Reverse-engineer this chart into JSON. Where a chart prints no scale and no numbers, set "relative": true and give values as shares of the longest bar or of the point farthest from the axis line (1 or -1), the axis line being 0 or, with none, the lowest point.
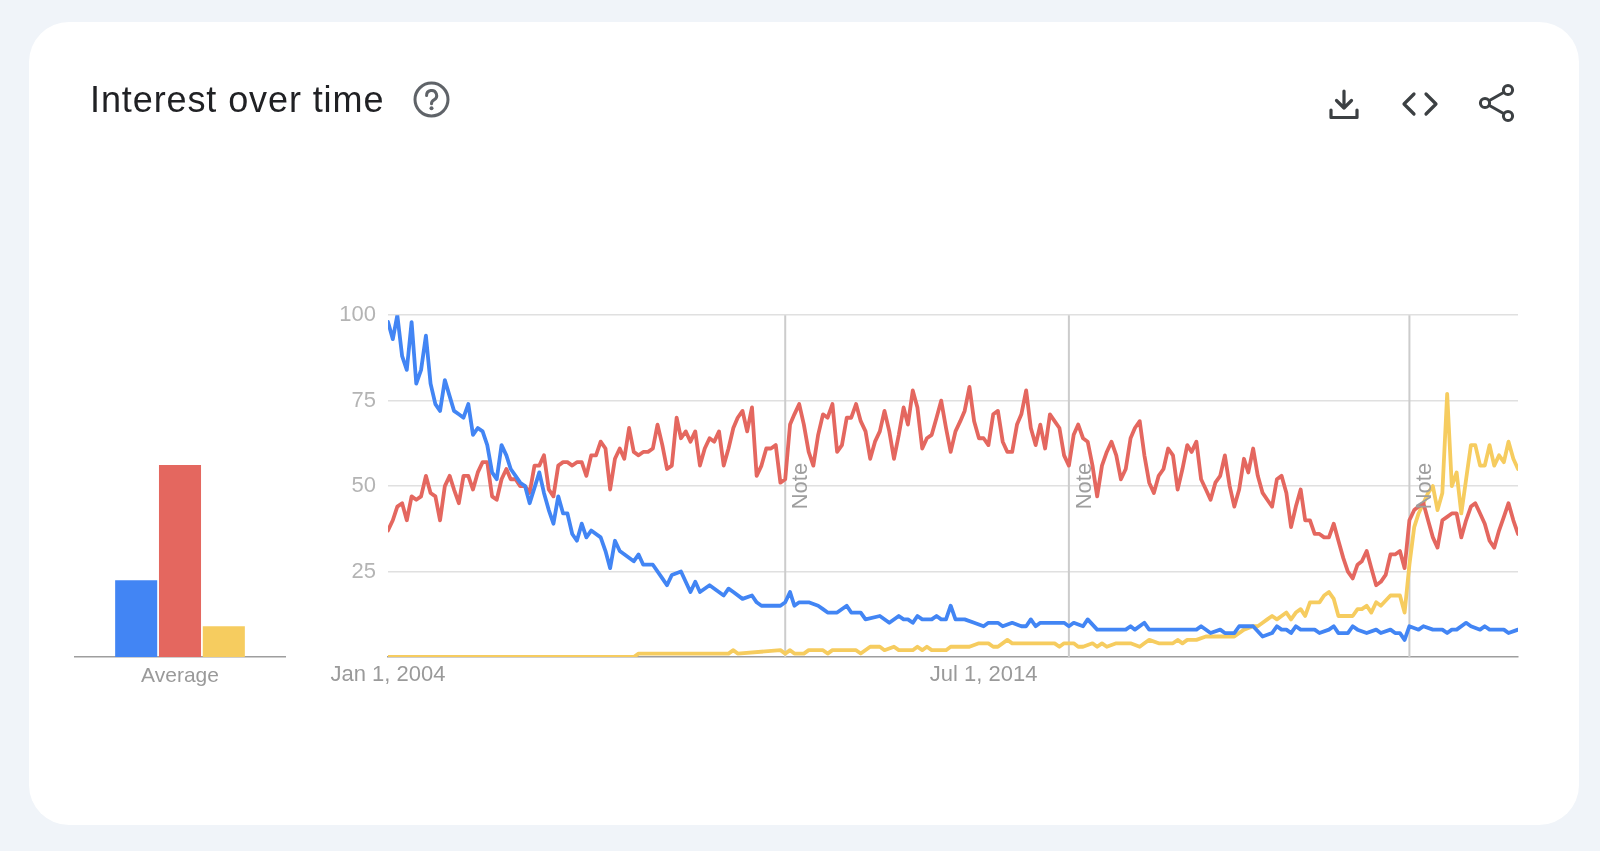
{
  "chart_data": [
    {
      "type": "bar",
      "title": "Interest over time",
      "categories": [
        "Average"
      ],
      "relative": true,
      "series": [
        {
          "color": "#4285f4",
          "values": [
            0.4
          ]
        },
        {
          "color": "#e4675f",
          "values": [
            1
          ]
        },
        {
          "color": "#f6cc5f",
          "values": [
            0.16
          ]
        }
      ]
    },
    {
      "type": "line",
      "x": [
        "2004-01",
        "2004-02",
        "2004-03",
        "2004-04",
        "2004-05",
        "2004-06",
        "2004-07",
        "2004-08",
        "2004-09",
        "2004-10",
        "2004-11",
        "2004-12",
        "2005-01",
        "2005-02",
        "2005-03",
        "2005-04",
        "2005-05",
        "2005-06",
        "2005-07",
        "2005-08",
        "2005-09",
        "2005-10",
        "2005-11",
        "2005-12",
        "2006-01",
        "2006-02",
        "2006-03",
        "2006-04",
        "2006-05",
        "2006-06",
        "2006-07",
        "2006-08",
        "2006-09",
        "2006-10",
        "2006-11",
        "2006-12",
        "2007-01",
        "2007-02",
        "2007-03",
        "2007-04",
        "2007-05",
        "2007-06",
        "2007-07",
        "2007-08",
        "2007-09",
        "2007-10",
        "2007-11",
        "2007-12",
        "2008-01",
        "2008-02",
        "2008-03",
        "2008-04",
        "2008-05",
        "2008-06",
        "2008-07",
        "2008-08",
        "2008-09",
        "2008-10",
        "2008-11",
        "2008-12",
        "2009-01",
        "2009-02",
        "2009-03",
        "2009-04",
        "2009-05",
        "2009-06",
        "2009-07",
        "2009-08",
        "2009-09",
        "2009-10",
        "2009-11",
        "2009-12",
        "2010-01",
        "2010-02",
        "2010-03",
        "2010-04",
        "2010-05",
        "2010-06",
        "2010-07",
        "2010-08",
        "2010-09",
        "2010-10",
        "2010-11",
        "2010-12",
        "2011-01",
        "2011-02",
        "2011-03",
        "2011-04",
        "2011-05",
        "2011-06",
        "2011-07",
        "2011-08",
        "2011-09",
        "2011-10",
        "2011-11",
        "2011-12",
        "2012-01",
        "2012-02",
        "2012-03",
        "2012-04",
        "2012-05",
        "2012-06",
        "2012-07",
        "2012-08",
        "2012-09",
        "2012-10",
        "2012-11",
        "2012-12",
        "2013-01",
        "2013-02",
        "2013-03",
        "2013-04",
        "2013-05",
        "2013-06",
        "2013-07",
        "2013-08",
        "2013-09",
        "2013-10",
        "2013-11",
        "2013-12",
        "2014-01",
        "2014-02",
        "2014-03",
        "2014-04",
        "2014-05",
        "2014-06",
        "2014-07",
        "2014-08",
        "2014-09",
        "2014-10",
        "2014-11",
        "2014-12",
        "2015-01",
        "2015-02",
        "2015-03",
        "2015-04",
        "2015-05",
        "2015-06",
        "2015-07",
        "2015-08",
        "2015-09",
        "2015-10",
        "2015-11",
        "2015-12",
        "2016-01",
        "2016-02",
        "2016-03",
        "2016-04",
        "2016-05",
        "2016-06",
        "2016-07",
        "2016-08",
        "2016-09",
        "2016-10",
        "2016-11",
        "2016-12",
        "2017-01",
        "2017-02",
        "2017-03",
        "2017-04",
        "2017-05",
        "2017-06",
        "2017-07",
        "2017-08",
        "2017-09",
        "2017-10",
        "2017-11",
        "2017-12",
        "2018-01",
        "2018-02",
        "2018-03",
        "2018-04",
        "2018-05",
        "2018-06",
        "2018-07",
        "2018-08",
        "2018-09",
        "2018-10",
        "2018-11",
        "2018-12",
        "2019-01",
        "2019-02",
        "2019-03",
        "2019-04",
        "2019-05",
        "2019-06",
        "2019-07",
        "2019-08",
        "2019-09",
        "2019-10",
        "2019-11",
        "2019-12",
        "2020-01",
        "2020-02",
        "2020-03",
        "2020-04",
        "2020-05",
        "2020-06",
        "2020-07",
        "2020-08",
        "2020-09",
        "2020-10",
        "2020-11",
        "2020-12",
        "2021-01",
        "2021-02",
        "2021-03",
        "2021-04",
        "2021-05",
        "2021-06",
        "2021-07",
        "2021-08",
        "2021-09",
        "2021-10",
        "2021-11",
        "2021-12",
        "2022-01",
        "2022-02",
        "2022-03",
        "2022-04",
        "2022-05",
        "2022-06",
        "2022-07",
        "2022-08",
        "2022-09",
        "2022-10",
        "2022-11",
        "2022-12",
        "2023-01",
        "2023-02",
        "2023-03",
        "2023-04",
        "2023-05",
        "2023-06",
        "2023-07",
        "2023-08",
        "2023-09",
        "2023-10",
        "2023-11",
        "2023-12"
      ],
      "series": [
        {
          "color": "#4285f4",
          "x": [
            "2004-01",
            "2004-02",
            "2004-03",
            "2004-04",
            "2004-05",
            "2004-06",
            "2004-07",
            "2004-08",
            "2004-09",
            "2004-10",
            "2004-11",
            "2004-12",
            "2005-01",
            "2005-03",
            "2005-04",
            "2005-05",
            "2005-06",
            "2005-07",
            "2005-08",
            "2005-09",
            "2005-10",
            "2005-11",
            "2005-12",
            "2006-01",
            "2006-02",
            "2006-03",
            "2006-04",
            "2006-05",
            "2006-06",
            "2006-07",
            "2006-09",
            "2006-10",
            "2006-11",
            "2006-12",
            "2007-01",
            "2007-02",
            "2007-03",
            "2007-04",
            "2007-05",
            "2007-06",
            "2007-07",
            "2007-08",
            "2007-10",
            "2007-11",
            "2007-12",
            "2008-01",
            "2008-02",
            "2008-05",
            "2008-06",
            "2008-07",
            "2008-09",
            "2008-11",
            "2008-12",
            "2009-01",
            "2009-03",
            "2009-05",
            "2009-06",
            "2009-07",
            "2009-09",
            "2009-12",
            "2010-01",
            "2010-02",
            "2010-04",
            "2010-06",
            "2010-07",
            "2010-08",
            "2010-12",
            "2011-01",
            "2011-02",
            "2011-03",
            "2011-04",
            "2011-06",
            "2011-08",
            "2011-09",
            "2011-10",
            "2011-12",
            "2012-02",
            "2012-03",
            "2012-05",
            "2012-06",
            "2012-09",
            "2012-11",
            "2013-01",
            "2013-02",
            "2013-03",
            "2013-04",
            "2013-05",
            "2013-06",
            "2013-08",
            "2013-09",
            "2013-10",
            "2013-11",
            "2013-12",
            "2014-01",
            "2014-03",
            "2014-05",
            "2014-07",
            "2014-08",
            "2014-10",
            "2014-11",
            "2015-01",
            "2015-03",
            "2015-04",
            "2015-05",
            "2015-06",
            "2015-07",
            "2015-12",
            "2016-01",
            "2016-02",
            "2016-04",
            "2016-05",
            "2016-07",
            "2016-09",
            "2017-01",
            "2017-02",
            "2017-03",
            "2017-05",
            "2017-06",
            "2018-04",
            "2018-05",
            "2018-07",
            "2018-09",
            "2018-10",
            "2018-12",
            "2019-01",
            "2019-04",
            "2019-06",
            "2019-08",
            "2019-09",
            "2019-10",
            "2019-11",
            "2019-12",
            "2020-01",
            "2020-02",
            "2020-05",
            "2020-06",
            "2020-08",
            "2020-09",
            "2020-10",
            "2020-12",
            "2021-01",
            "2021-02",
            "2021-04",
            "2021-06",
            "2021-07",
            "2021-09",
            "2021-10",
            "2021-11",
            "2021-12",
            "2022-01",
            "2022-03",
            "2022-04",
            "2022-06",
            "2022-08",
            "2022-09",
            "2022-10",
            "2022-11",
            "2023-01",
            "2023-02",
            "2023-04",
            "2023-05",
            "2023-06",
            "2023-09",
            "2023-10",
            "2023-12"
          ],
          "values": [
            98,
            93,
            100,
            88,
            84,
            98,
            80,
            84,
            94,
            80,
            74,
            72,
            81,
            72,
            71,
            70,
            74,
            65,
            67,
            66,
            62,
            54,
            52,
            62,
            59,
            55,
            53,
            51,
            50,
            45,
            54,
            48,
            43,
            39,
            47,
            42,
            42,
            36,
            34,
            39,
            35,
            37,
            35,
            31,
            26,
            34,
            31,
            28,
            30,
            27,
            27,
            23,
            21,
            24,
            25,
            19,
            22,
            19,
            21,
            18,
            20,
            19,
            17,
            18,
            16,
            15,
            15,
            16,
            19,
            15,
            16,
            16,
            15,
            14,
            13,
            13,
            15,
            13,
            13,
            11,
            12,
            10,
            12,
            11,
            11,
            10,
            12,
            11,
            11,
            12,
            11,
            11,
            15,
            11,
            11,
            10,
            9,
            10,
            10,
            9,
            10,
            9,
            9,
            11,
            9,
            10,
            10,
            9,
            10,
            9,
            11,
            8,
            8,
            8,
            9,
            8,
            10,
            8,
            8,
            9,
            7,
            8,
            7,
            7,
            9,
            9,
            6,
            7,
            9,
            8,
            8,
            7,
            9,
            8,
            8,
            7,
            8,
            9,
            7,
            7,
            9,
            8,
            7,
            8,
            7,
            8,
            7,
            7,
            5,
            9,
            8,
            9,
            8,
            8,
            7,
            8,
            8,
            10,
            9,
            8,
            9,
            8,
            8,
            7,
            8
          ]
        },
        {
          "color": "#e4675f",
          "values": [
            37,
            40,
            44,
            45,
            40,
            47,
            46,
            47,
            53,
            48,
            47,
            40,
            50,
            53,
            49,
            45,
            53,
            53,
            49,
            54,
            57,
            57,
            47,
            46,
            52,
            55,
            52,
            52,
            50,
            50,
            48,
            56,
            56,
            59,
            49,
            47,
            56,
            57,
            57,
            56,
            57,
            57,
            53,
            59,
            59,
            63,
            61,
            49,
            58,
            61,
            58,
            67,
            60,
            59,
            60,
            60,
            61,
            68,
            62,
            55,
            56,
            70,
            64,
            66,
            63,
            66,
            56,
            61,
            64,
            63,
            66,
            56,
            61,
            67,
            70,
            72,
            66,
            73,
            53,
            56,
            61,
            61,
            62,
            51,
            52,
            68,
            71,
            74,
            68,
            60,
            56,
            65,
            71,
            70,
            74,
            60,
            62,
            70,
            70,
            74,
            69,
            66,
            58,
            63,
            66,
            72,
            66,
            58,
            65,
            73,
            68,
            78,
            73,
            61,
            64,
            65,
            70,
            75,
            67,
            60,
            66,
            69,
            72,
            79,
            69,
            64,
            64,
            62,
            71,
            72,
            63,
            60,
            60,
            68,
            71,
            78,
            67,
            62,
            68,
            61,
            71,
            69,
            67,
            59,
            56,
            65,
            68,
            64,
            63,
            56,
            47,
            56,
            60,
            63,
            59,
            52,
            55,
            64,
            67,
            69,
            59,
            51,
            48,
            53,
            55,
            61,
            59,
            49,
            55,
            62,
            60,
            63,
            52,
            49,
            46,
            51,
            53,
            59,
            50,
            44,
            49,
            58,
            54,
            61,
            53,
            48,
            46,
            44,
            52,
            53,
            48,
            38,
            44,
            49,
            40,
            40,
            36,
            36,
            35,
            35,
            39,
            34,
            29,
            25,
            23,
            27,
            28,
            31,
            26,
            21,
            22,
            24,
            30,
            30,
            31,
            26,
            40,
            43,
            44,
            45,
            40,
            35,
            32,
            40,
            41,
            42,
            42,
            35,
            40,
            44,
            45,
            42,
            39,
            34,
            32,
            37,
            41,
            45,
            40,
            36
          ]
        },
        {
          "color": "#f6cc5f",
          "x": [
            "2004-01",
            "2008-05",
            "2008-06",
            "2010-01",
            "2010-02",
            "2010-03",
            "2010-12",
            "2011-01",
            "2011-02",
            "2011-03",
            "2011-05",
            "2011-06",
            "2011-09",
            "2011-10",
            "2011-11",
            "2012-04",
            "2012-05",
            "2012-07",
            "2012-09",
            "2012-10",
            "2012-12",
            "2013-01",
            "2013-04",
            "2013-05",
            "2013-06",
            "2013-07",
            "2013-08",
            "2013-11",
            "2013-12",
            "2014-04",
            "2014-06",
            "2014-08",
            "2014-09",
            "2014-10",
            "2014-12",
            "2015-01",
            "2015-10",
            "2015-11",
            "2015-12",
            "2016-02",
            "2016-03",
            "2016-04",
            "2016-06",
            "2016-07",
            "2016-08",
            "2016-09",
            "2016-11",
            "2017-02",
            "2017-04",
            "2017-05",
            "2017-06",
            "2017-08",
            "2017-11",
            "2017-12",
            "2018-01",
            "2018-02",
            "2018-04",
            "2018-06",
            "2018-12",
            "2019-02",
            "2019-04",
            "2019-05",
            "2019-06",
            "2019-07",
            "2019-08",
            "2019-09",
            "2019-10",
            "2019-11",
            "2019-12",
            "2020-01",
            "2020-02",
            "2020-03",
            "2020-04",
            "2020-06",
            "2020-07",
            "2020-08",
            "2020-09",
            "2020-10",
            "2021-01",
            "2021-02",
            "2021-03",
            "2021-04",
            "2021-05",
            "2021-06",
            "2021-07",
            "2021-09",
            "2021-11",
            "2021-12",
            "2022-01",
            "2022-02",
            "2022-03",
            "2022-04",
            "2022-05",
            "2022-06",
            "2022-07",
            "2022-08",
            "2022-09",
            "2022-10",
            "2022-11",
            "2022-12",
            "2023-01",
            "2023-02",
            "2023-03",
            "2023-04",
            "2023-05",
            "2023-06",
            "2023-07",
            "2023-08",
            "2023-09",
            "2023-10",
            "2023-11",
            "2023-12"
          ],
          "values": [
            0,
            0,
            1,
            1,
            2,
            1,
            2,
            1,
            2,
            1,
            1,
            2,
            2,
            1,
            2,
            2,
            1,
            3,
            3,
            2,
            3,
            2,
            2,
            3,
            2,
            3,
            2,
            2,
            3,
            3,
            4,
            4,
            3,
            3,
            5,
            4,
            4,
            3,
            4,
            4,
            3,
            3,
            4,
            3,
            4,
            3,
            4,
            4,
            3,
            4,
            5,
            4,
            4,
            5,
            4,
            5,
            5,
            6,
            6,
            8,
            9,
            9,
            10,
            11,
            12,
            11,
            12,
            13,
            11,
            13,
            14,
            12,
            16,
            16,
            18,
            19,
            17,
            12,
            12,
            14,
            14,
            15,
            13,
            16,
            15,
            18,
            18,
            13,
            27,
            38,
            42,
            45,
            48,
            50,
            43,
            48,
            77,
            50,
            54,
            42,
            52,
            62,
            62,
            56,
            56,
            62,
            56,
            59,
            57,
            63,
            58,
            55
          ]
        }
      ],
      "xlim": [
        "2004-01",
        "2023-12"
      ],
      "xticks": [
        {
          "value": "2004-01-01",
          "label": "Jan 1, 2004"
        },
        {
          "value": "2014-07-01",
          "label": "Jul 1, 2014"
        }
      ],
      "ylim": [
        0,
        100
      ],
      "yticks": [
        25,
        50,
        75,
        100
      ],
      "grid": "y",
      "ref_lines": [
        {
          "axis": "x",
          "value": "2011-01-01",
          "label": "Note",
          "color": "#cccccc"
        },
        {
          "axis": "x",
          "value": "2016-01-01",
          "label": "Note",
          "color": "#cccccc"
        },
        {
          "axis": "x",
          "value": "2022-01-01",
          "label": "Note",
          "color": "#cccccc"
        }
      ]
    }
  ]
}
